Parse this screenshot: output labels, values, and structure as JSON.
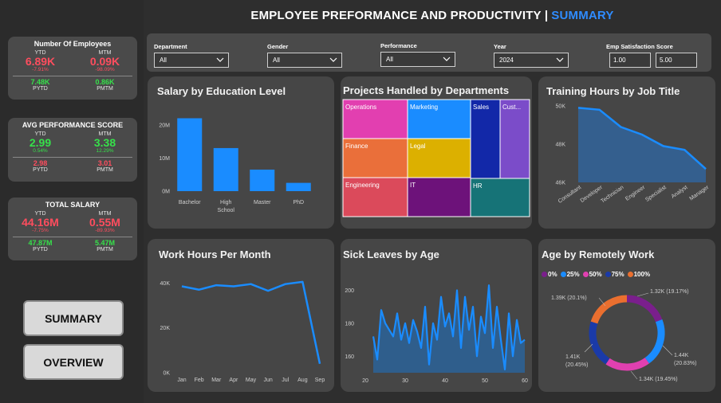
{
  "header": {
    "title": "EMPLOYEE PREFORMANCE AND PRODUCTIVITY |",
    "accent": "SUMMARY"
  },
  "kpis": [
    {
      "title": "Number Of Employees",
      "ytd_label": "YTD",
      "mtm_label": "MTM",
      "ytd": "6.89K",
      "ytd_pct": "-7.91%",
      "mtm": "0.09K",
      "mtm_pct": "-98.09%",
      "pytd": "7.48K",
      "pmtm": "0.86K",
      "pytd_label": "PYTD",
      "pmtm_label": "PMTM",
      "ytd_color": "#ff4d5e",
      "mtm_color": "#ff4d5e",
      "prev_color": "#36e04a"
    },
    {
      "title": "AVG PERFORMANCE SCORE",
      "ytd_label": "YTD",
      "mtm_label": "MTM",
      "ytd": "2.99",
      "ytd_pct": "0.54%",
      "mtm": "3.38",
      "mtm_pct": "12.29%",
      "pytd": "2.98",
      "pmtm": "3.01",
      "pytd_label": "PYTD",
      "pmtm_label": "PMTM",
      "ytd_color": "#36e04a",
      "mtm_color": "#36e04a",
      "prev_color": "#ff4d5e"
    },
    {
      "title": "TOTAL SALARY",
      "ytd_label": "YTD",
      "mtm_label": "MTM",
      "ytd": "44.16M",
      "ytd_pct": "-7.75%",
      "mtm": "0.55M",
      "mtm_pct": "-89.93%",
      "pytd": "47.87M",
      "pmtm": "5.47M",
      "pytd_label": "PYTD",
      "pmtm_label": "PMTM",
      "ytd_color": "#ff4d5e",
      "mtm_color": "#ff4d5e",
      "prev_color": "#36e04a"
    }
  ],
  "nav": {
    "summary": "SUMMARY",
    "overview": "OVERVIEW"
  },
  "filters": {
    "department": {
      "label": "Department",
      "value": "All"
    },
    "gender": {
      "label": "Gender",
      "value": "All"
    },
    "performance": {
      "label": "Performance",
      "value": "All"
    },
    "year": {
      "label": "Year",
      "value": "2024"
    },
    "satisfaction": {
      "label": "Emp Satisfaction Score",
      "min": "1.00",
      "max": "5.00"
    }
  },
  "chart_data": [
    {
      "id": "salary-education",
      "type": "bar",
      "title": "Salary by Education Level",
      "categories": [
        "Bachelor",
        "High School",
        "Master",
        "PhD"
      ],
      "category_lines": [
        [
          "Bachelor"
        ],
        [
          "High",
          "School"
        ],
        [
          "Master"
        ],
        [
          "PhD"
        ]
      ],
      "values": [
        22,
        13,
        6.5,
        2.5
      ],
      "yticks": [
        "0M",
        "10M",
        "20M"
      ],
      "ytick_values": [
        0,
        10,
        20
      ],
      "ylim": [
        0,
        25
      ],
      "color": "#1a8cff"
    },
    {
      "id": "projects-departments",
      "type": "treemap",
      "title": "Projects Handled by Departments",
      "cells": [
        {
          "label": "Operations",
          "color": "#e23fb0"
        },
        {
          "label": "Marketing",
          "color": "#1a8cff"
        },
        {
          "label": "Sales",
          "color": "#1228a8"
        },
        {
          "label": "Cust...",
          "color": "#7b4cc9"
        },
        {
          "label": "Finance",
          "color": "#ea6f3a"
        },
        {
          "label": "Legal",
          "color": "#dcb000"
        },
        {
          "label": "Engineering",
          "color": "#db4a5b"
        },
        {
          "label": "IT",
          "color": "#6d127a"
        },
        {
          "label": "HR",
          "color": "#167377"
        }
      ]
    },
    {
      "id": "training-hours",
      "type": "area",
      "title": "Training Hours by Job Title",
      "categories": [
        "Consultant",
        "Developer",
        "Technician",
        "Engineer",
        "Specialist",
        "Analyst",
        "Manager"
      ],
      "values": [
        49.9,
        49.8,
        48.9,
        48.5,
        47.9,
        47.7,
        46.7
      ],
      "yticks": [
        "46K",
        "48K",
        "50K"
      ],
      "ytick_values": [
        46,
        48,
        50
      ],
      "ylim": [
        46,
        50
      ],
      "color": "#2f6fb5"
    },
    {
      "id": "work-hours",
      "type": "line",
      "title": "Work Hours Per Month",
      "categories": [
        "Jan",
        "Feb",
        "Mar",
        "Apr",
        "May",
        "Jun",
        "Jul",
        "Aug",
        "Sep"
      ],
      "values": [
        38500,
        37000,
        39000,
        38500,
        39500,
        36500,
        39500,
        40500,
        4000
      ],
      "yticks": [
        "0K",
        "20K",
        "40K"
      ],
      "ytick_values": [
        0,
        20000,
        40000
      ],
      "ylim": [
        0,
        44000
      ],
      "color": "#1a8cff"
    },
    {
      "id": "sick-leaves",
      "type": "area",
      "title": "Sick Leaves by Age",
      "x": [
        22,
        23,
        24,
        25,
        26,
        27,
        28,
        29,
        30,
        31,
        32,
        33,
        34,
        35,
        36,
        37,
        38,
        39,
        40,
        41,
        42,
        43,
        44,
        45,
        46,
        47,
        48,
        49,
        50,
        51,
        52,
        53,
        54,
        55,
        56,
        57,
        58,
        59,
        60
      ],
      "values": [
        172,
        158,
        188,
        180,
        176,
        172,
        186,
        170,
        180,
        168,
        182,
        175,
        165,
        190,
        155,
        180,
        170,
        196,
        178,
        186,
        172,
        200,
        165,
        196,
        176,
        190,
        160,
        184,
        174,
        203,
        165,
        190,
        170,
        152,
        186,
        160,
        182,
        168,
        170
      ],
      "xticks": [
        "20",
        "30",
        "40",
        "50",
        "60"
      ],
      "xtick_values": [
        20,
        30,
        40,
        50,
        60
      ],
      "xlim": [
        20,
        60
      ],
      "yticks": [
        "160",
        "180",
        "200"
      ],
      "ytick_values": [
        160,
        180,
        200
      ],
      "ylim": [
        150,
        206
      ],
      "color": "#2e6fb7",
      "fill": "#2f5e8c"
    },
    {
      "id": "remote-work",
      "type": "pie",
      "title": "Age by Remotely Work",
      "legend": [
        {
          "label": "0%",
          "color": "#7a1f8c"
        },
        {
          "label": "25%",
          "color": "#1a8cff"
        },
        {
          "label": "50%",
          "color": "#e040b0"
        },
        {
          "label": "75%",
          "color": "#1a3aa8"
        },
        {
          "label": "100%",
          "color": "#ea6f2f"
        }
      ],
      "slices": [
        {
          "label": "1.32K (19.17%)",
          "value": 19.17,
          "color": "#7a1f8c"
        },
        {
          "label": "1.44K (20.83%)",
          "value": 20.83,
          "color": "#1a8cff"
        },
        {
          "label": "1.34K (19.45%)",
          "value": 19.45,
          "color": "#e040b0"
        },
        {
          "label": "1.41K (20.45%)",
          "value": 20.45,
          "color": "#1a3aa8"
        },
        {
          "label": "1.39K (20.1%)",
          "value": 20.1,
          "color": "#ea6f2f"
        }
      ],
      "lines_1": [
        "1.32K (19.17%)"
      ],
      "lines_2": [
        "1.44K",
        "(20.83%)"
      ],
      "lines_3": [
        "1.34K (19.45%)"
      ],
      "lines_4": [
        "1.41K",
        "(20.45%)"
      ],
      "lines_5": [
        "1.39K (20.1%)"
      ]
    }
  ]
}
